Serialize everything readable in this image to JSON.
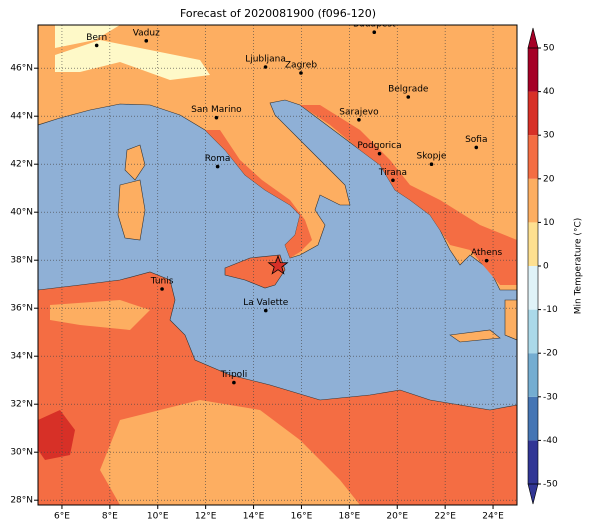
{
  "title": "Forecast of 2020081900 (f096-120)",
  "map": {
    "xlim": [
      5,
      25
    ],
    "ylim": [
      27.8,
      47.8
    ],
    "xticks": [
      {
        "value": 6,
        "label": "6°E"
      },
      {
        "value": 8,
        "label": "8°E"
      },
      {
        "value": 10,
        "label": "10°E"
      },
      {
        "value": 12,
        "label": "12°E"
      },
      {
        "value": 14,
        "label": "14°E"
      },
      {
        "value": 16,
        "label": "16°E"
      },
      {
        "value": 18,
        "label": "18°E"
      },
      {
        "value": 20,
        "label": "20°E"
      },
      {
        "value": 22,
        "label": "22°E"
      },
      {
        "value": 24,
        "label": "24°E"
      }
    ],
    "yticks": [
      {
        "value": 28,
        "label": "28°N"
      },
      {
        "value": 30,
        "label": "30°N"
      },
      {
        "value": 32,
        "label": "32°N"
      },
      {
        "value": 34,
        "label": "34°N"
      },
      {
        "value": 36,
        "label": "36°N"
      },
      {
        "value": 38,
        "label": "38°N"
      },
      {
        "value": 40,
        "label": "40°N"
      },
      {
        "value": 42,
        "label": "42°N"
      },
      {
        "value": 44,
        "label": "44°N"
      },
      {
        "value": 46,
        "label": "46°N"
      }
    ],
    "cities": [
      {
        "name": "Bern",
        "lon": 7.45,
        "lat": 46.95
      },
      {
        "name": "Vaduz",
        "lon": 9.52,
        "lat": 47.14
      },
      {
        "name": "Budapest",
        "lon": 19.04,
        "lat": 47.5
      },
      {
        "name": "Ljubljana",
        "lon": 14.5,
        "lat": 46.05
      },
      {
        "name": "Zagreb",
        "lon": 15.98,
        "lat": 45.8
      },
      {
        "name": "Belgrade",
        "lon": 20.46,
        "lat": 44.8
      },
      {
        "name": "San Marino",
        "lon": 12.45,
        "lat": 43.94
      },
      {
        "name": "Sarajevo",
        "lon": 18.4,
        "lat": 43.85
      },
      {
        "name": "Sofia",
        "lon": 23.3,
        "lat": 42.7
      },
      {
        "name": "Podgorica",
        "lon": 19.26,
        "lat": 42.44
      },
      {
        "name": "Skopje",
        "lon": 21.43,
        "lat": 42.0
      },
      {
        "name": "Roma",
        "lon": 12.5,
        "lat": 41.9
      },
      {
        "name": "Tirana",
        "lon": 19.82,
        "lat": 41.33
      },
      {
        "name": "Athens",
        "lon": 23.73,
        "lat": 37.98
      },
      {
        "name": "Tunis",
        "lon": 10.18,
        "lat": 36.8
      },
      {
        "name": "La Valette",
        "lon": 14.51,
        "lat": 35.9
      },
      {
        "name": "Tripoli",
        "lon": 13.18,
        "lat": 32.9
      }
    ]
  },
  "colorbar": {
    "label": "Min Temperature (°C)",
    "lim": [
      -50,
      50
    ],
    "ticks": [
      -50,
      -40,
      -30,
      -20,
      -10,
      0,
      10,
      20,
      30,
      40,
      50
    ],
    "colors": [
      "#313695",
      "#4575b4",
      "#74add1",
      "#abd9e9",
      "#e0f3f8",
      "#fee090",
      "#fdae61",
      "#f46d43",
      "#d73027",
      "#a50026"
    ]
  }
}
